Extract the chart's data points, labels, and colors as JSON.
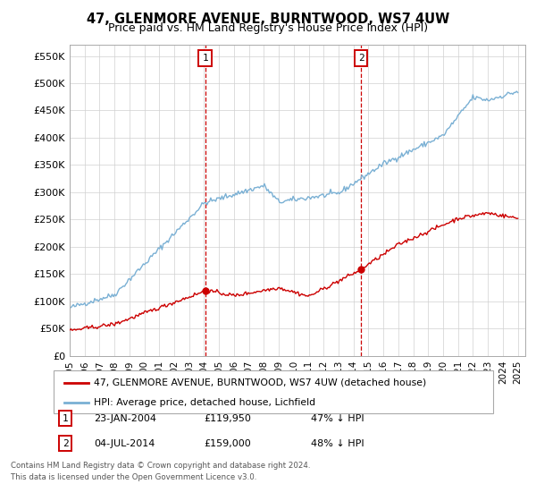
{
  "title": "47, GLENMORE AVENUE, BURNTWOOD, WS7 4UW",
  "subtitle": "Price paid vs. HM Land Registry's House Price Index (HPI)",
  "yticks": [
    0,
    50000,
    100000,
    150000,
    200000,
    250000,
    300000,
    350000,
    400000,
    450000,
    500000,
    550000
  ],
  "ytick_labels": [
    "£0",
    "£50K",
    "£100K",
    "£150K",
    "£200K",
    "£250K",
    "£300K",
    "£350K",
    "£400K",
    "£450K",
    "£500K",
    "£550K"
  ],
  "legend_line1": "47, GLENMORE AVENUE, BURNTWOOD, WS7 4UW (detached house)",
  "legend_line2": "HPI: Average price, detached house, Lichfield",
  "line1_color": "#cc0000",
  "line2_color": "#7ab0d4",
  "annotation1_label": "1",
  "annotation1_date": "23-JAN-2004",
  "annotation1_price": "£119,950",
  "annotation1_note": "47% ↓ HPI",
  "annotation2_label": "2",
  "annotation2_date": "04-JUL-2014",
  "annotation2_price": "£159,000",
  "annotation2_note": "48% ↓ HPI",
  "footer_line1": "Contains HM Land Registry data © Crown copyright and database right 2024.",
  "footer_line2": "This data is licensed under the Open Government Licence v3.0.",
  "bg_color": "#ffffff",
  "grid_color": "#d0d0d0",
  "ann_box_color": "#cc0000",
  "sale1_x": 2004.065,
  "sale1_y": 119950,
  "sale2_x": 2014.505,
  "sale2_y": 159000,
  "xlim_left": 1995,
  "xlim_right": 2025.5,
  "ylim_bottom": 0,
  "ylim_top": 570000
}
